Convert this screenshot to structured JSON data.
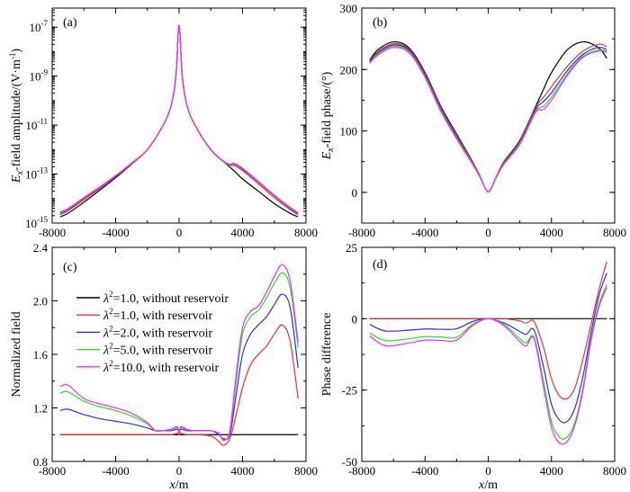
{
  "colors": {
    "black": "#000000",
    "red": "#ff2a2a",
    "blue": "#2a2aff",
    "green": "#22e022",
    "magenta": "#ff22ff"
  },
  "legend": [
    {
      "symbol": "λ",
      "sup": "2",
      "text": "=1.0, without reservoir",
      "color": "#000000"
    },
    {
      "symbol": "λ",
      "sup": "2",
      "text": "=1.0, with reservoir",
      "color": "#ff2a2a"
    },
    {
      "symbol": "λ",
      "sup": "2",
      "text": "=2.0, with reservoir",
      "color": "#2a2aff"
    },
    {
      "symbol": "λ",
      "sup": "2",
      "text": "=5.0, with reservoir",
      "color": "#22e022"
    },
    {
      "symbol": "λ",
      "sup": "2",
      "text": "=10.0, with reservoir",
      "color": "#ff22ff"
    }
  ],
  "chart_data": [
    {
      "type": "line",
      "panel": "(a)",
      "yscale": "log",
      "ylabel": {
        "pre": "E",
        "sub": "x",
        "mid": "-field amplitude/(V·m",
        "sup": "-1",
        "post": ")"
      },
      "xlabel": "",
      "xlim": [
        -8000,
        8000
      ],
      "ylim": [
        1e-15,
        6e-07
      ],
      "xticks": [
        "-8000",
        "-4000",
        "0",
        "4000",
        "8000"
      ],
      "yticks": [
        {
          "base": "10",
          "exp": "-15"
        },
        {
          "base": "10",
          "exp": "-13"
        },
        {
          "base": "10",
          "exp": "-11"
        },
        {
          "base": "10",
          "exp": "-9"
        },
        {
          "base": "10",
          "exp": "-7"
        }
      ],
      "x": [
        -7500,
        -7000,
        -6000,
        -5000,
        -4000,
        -3000,
        -2000,
        -1000,
        -500,
        -200,
        0,
        200,
        500,
        1000,
        2000,
        3000,
        3500,
        4000,
        5000,
        6000,
        7000,
        7500
      ],
      "series": [
        {
          "legend": 0,
          "values": [
            1.8e-15,
            2.5e-15,
            7.1e-15,
            2.2e-14,
            7.1e-14,
            2.5e-13,
            1e-12,
            1e-11,
            6.3e-11,
            1e-09,
            1.2e-07,
            1e-09,
            6.3e-11,
            1e-11,
            1e-12,
            2.5e-13,
            1.3e-13,
            6.3e-14,
            2e-14,
            6.3e-15,
            2.5e-15,
            1.8e-15
          ]
        },
        {
          "legend": 1,
          "values": [
            2.2e-15,
            3.2e-15,
            8.9e-15,
            2.6e-14,
            7.9e-14,
            2.6e-13,
            1e-12,
            1e-11,
            6.3e-11,
            1e-09,
            1.2e-07,
            1e-09,
            6.3e-11,
            1e-11,
            1e-12,
            2.6e-13,
            2.2e-13,
            1.4e-13,
            4e-14,
            1.1e-14,
            3.5e-15,
            2.2e-15
          ]
        },
        {
          "legend": 2,
          "values": [
            2.5e-15,
            3.5e-15,
            1e-14,
            2.8e-14,
            8.3e-14,
            2.7e-13,
            1e-12,
            1e-11,
            6.3e-11,
            1e-09,
            1.2e-07,
            1e-09,
            6.3e-11,
            1e-11,
            1e-12,
            2.7e-13,
            2.5e-13,
            1.6e-13,
            4.7e-14,
            1.3e-14,
            4e-15,
            2.5e-15
          ]
        },
        {
          "legend": 3,
          "values": [
            2.6e-15,
            3.7e-15,
            1.05e-14,
            2.9e-14,
            8.5e-14,
            2.7e-13,
            1e-12,
            1e-11,
            6.3e-11,
            1e-09,
            1.2e-07,
            1e-09,
            6.3e-11,
            1e-11,
            1e-12,
            2.7e-13,
            2.6e-13,
            1.7e-13,
            4.9e-14,
            1.35e-14,
            4.2e-15,
            2.6e-15
          ]
        },
        {
          "legend": 4,
          "values": [
            2.8e-15,
            3.9e-15,
            1.1e-14,
            3e-14,
            8.7e-14,
            2.8e-13,
            1e-12,
            1e-11,
            6.3e-11,
            1e-09,
            1.2e-07,
            1e-09,
            6.3e-11,
            1e-11,
            1e-12,
            2.8e-13,
            2.7e-13,
            1.75e-13,
            5e-14,
            1.4e-14,
            4.4e-15,
            2.7e-15
          ]
        }
      ]
    },
    {
      "type": "line",
      "panel": "(b)",
      "ylabel": {
        "pre": "E",
        "sub": "x",
        "mid": "-field phase/(°)",
        "sup": "",
        "post": ""
      },
      "xlabel": "",
      "xlim": [
        -8000,
        8000
      ],
      "ylim": [
        -50,
        300
      ],
      "xticks": [
        "-8000",
        "-4000",
        "0",
        "4000",
        "8000"
      ],
      "yticks": [
        "0",
        "100",
        "200",
        "300"
      ],
      "x": [
        -7500,
        -7000,
        -6000,
        -5000,
        -4000,
        -3000,
        -2000,
        -1000,
        -500,
        -200,
        0,
        200,
        500,
        1000,
        2000,
        3000,
        3500,
        4000,
        5000,
        6000,
        7000,
        7500
      ],
      "series": [
        {
          "legend": 0,
          "values": [
            215,
            232,
            245,
            235,
            195,
            140,
            95,
            50,
            25,
            7,
            1,
            7,
            25,
            50,
            85,
            140,
            168,
            195,
            232,
            245,
            235,
            218
          ]
        },
        {
          "legend": 1,
          "values": [
            213,
            229,
            242,
            233,
            193,
            138,
            93,
            49,
            25,
            7,
            1,
            7,
            25,
            49,
            84,
            138,
            155,
            172,
            205,
            230,
            241,
            237
          ]
        },
        {
          "legend": 2,
          "values": [
            212,
            227,
            240,
            231,
            191,
            136,
            91,
            48,
            24,
            7,
            1,
            7,
            24,
            48,
            82,
            135,
            148,
            162,
            198,
            225,
            236,
            232
          ]
        },
        {
          "legend": 3,
          "values": [
            211,
            225,
            238,
            229,
            189,
            134,
            89,
            47,
            24,
            7,
            1,
            7,
            24,
            47,
            80,
            132,
            140,
            155,
            193,
            222,
            232,
            229
          ]
        },
        {
          "legend": 4,
          "values": [
            210,
            223,
            236,
            227,
            187,
            132,
            87,
            46,
            24,
            7,
            1,
            7,
            24,
            46,
            78,
            130,
            135,
            150,
            190,
            220,
            230,
            228
          ]
        }
      ]
    },
    {
      "type": "line",
      "panel": "(c)",
      "ylabel": {
        "pre": "Normalized field",
        "sub": "",
        "mid": "",
        "sup": "",
        "post": ""
      },
      "xlabel": {
        "italic": "x",
        "rest": "/m"
      },
      "xlim": [
        -8000,
        8000
      ],
      "ylim": [
        0.8,
        2.4
      ],
      "xticks": [
        "-8000",
        "-4000",
        "0",
        "4000",
        "8000"
      ],
      "yticks": [
        "0.8",
        "1.2",
        "1.6",
        "2.0",
        "2.4"
      ],
      "legend_position": "upper-left",
      "x": [
        -7500,
        -7000,
        -6000,
        -5000,
        -4000,
        -3000,
        -2000,
        -1500,
        -1000,
        -500,
        -100,
        0,
        100,
        500,
        1000,
        2000,
        2500,
        2800,
        3200,
        3600,
        4000,
        4500,
        5000,
        5500,
        6000,
        6500,
        7000,
        7500
      ],
      "series": [
        {
          "legend": 0,
          "values": [
            1,
            1,
            1,
            1,
            1,
            1,
            1,
            1,
            1,
            1,
            1,
            1,
            1,
            1,
            1,
            1,
            1,
            1,
            1,
            1,
            1,
            1,
            1,
            1,
            1,
            1,
            1,
            1
          ]
        },
        {
          "legend": 1,
          "values": [
            1,
            1,
            1,
            1,
            1,
            1,
            1,
            1,
            1,
            1,
            1.01,
            1,
            1.01,
            1,
            1,
            0.99,
            0.95,
            0.92,
            0.97,
            1.15,
            1.35,
            1.52,
            1.6,
            1.66,
            1.75,
            1.82,
            1.7,
            1.27
          ]
        },
        {
          "legend": 2,
          "values": [
            1.18,
            1.19,
            1.15,
            1.12,
            1.1,
            1.08,
            1.05,
            1.03,
            1.03,
            1.03,
            1.04,
            1,
            1.04,
            1.03,
            1.03,
            1.03,
            1,
            0.97,
            1,
            1.3,
            1.6,
            1.75,
            1.82,
            1.88,
            1.97,
            2.05,
            1.95,
            1.5
          ]
        },
        {
          "legend": 3,
          "values": [
            1.31,
            1.32,
            1.25,
            1.21,
            1.18,
            1.14,
            1.08,
            1.03,
            1.03,
            1.04,
            1.05,
            1,
            1.05,
            1.04,
            1.03,
            1.03,
            1.01,
            0.96,
            1.02,
            1.4,
            1.75,
            1.88,
            1.93,
            2.02,
            2.13,
            2.21,
            2.1,
            1.65
          ]
        },
        {
          "legend": 4,
          "values": [
            1.36,
            1.37,
            1.27,
            1.23,
            1.2,
            1.16,
            1.09,
            1.03,
            1.03,
            1.04,
            1.06,
            1,
            1.06,
            1.04,
            1.03,
            1.03,
            1.01,
            0.96,
            1.03,
            1.45,
            1.8,
            1.92,
            1.96,
            2.06,
            2.18,
            2.27,
            2.15,
            1.69
          ]
        }
      ]
    },
    {
      "type": "line",
      "panel": "(d)",
      "ylabel": {
        "pre": "Phase difference",
        "sub": "",
        "mid": "",
        "sup": "",
        "post": ""
      },
      "xlabel": {
        "italic": "x",
        "rest": "/m"
      },
      "xlim": [
        -8000,
        8000
      ],
      "ylim": [
        -50,
        25
      ],
      "xticks": [
        "-8000",
        "-4000",
        "0",
        "4000",
        "8000"
      ],
      "yticks": [
        "-50",
        "-25",
        "0",
        "25"
      ],
      "x": [
        -7500,
        -6500,
        -5000,
        -4000,
        -3000,
        -2000,
        -1000,
        0,
        1000,
        2000,
        2400,
        2900,
        3500,
        4000,
        4500,
        5000,
        5500,
        6000,
        6500,
        7000,
        7500
      ],
      "series": [
        {
          "legend": 0,
          "values": [
            0,
            0,
            0,
            0,
            0,
            0,
            0,
            0,
            0,
            0,
            0,
            0,
            0,
            0,
            0,
            0,
            0,
            0,
            0,
            0,
            0
          ]
        },
        {
          "legend": 1,
          "values": [
            0,
            0,
            0,
            0,
            0,
            0,
            0,
            0,
            0,
            -0.8,
            -1.5,
            -1,
            -10,
            -21,
            -27,
            -28,
            -24,
            -14,
            -2,
            10,
            20
          ]
        },
        {
          "legend": 2,
          "values": [
            -2,
            -4.3,
            -4,
            -3.6,
            -3.7,
            -3.5,
            -1,
            0,
            -1.5,
            -4.5,
            -5.5,
            -4,
            -17,
            -30,
            -35.5,
            -36,
            -31,
            -20,
            -5,
            8,
            16
          ]
        },
        {
          "legend": 3,
          "values": [
            -5,
            -7.7,
            -7,
            -6.3,
            -6.4,
            -6.5,
            -2,
            0,
            -2,
            -7,
            -8.5,
            -6.5,
            -22,
            -36,
            -41.5,
            -41.5,
            -36,
            -24,
            -7,
            5,
            12
          ]
        },
        {
          "legend": 4,
          "values": [
            -6,
            -9.5,
            -8.5,
            -7.5,
            -7.6,
            -7.5,
            -2.5,
            0,
            -2.5,
            -8,
            -9.5,
            -7,
            -24,
            -38,
            -43.5,
            -43,
            -37,
            -25,
            -8,
            4,
            11
          ]
        }
      ]
    }
  ]
}
